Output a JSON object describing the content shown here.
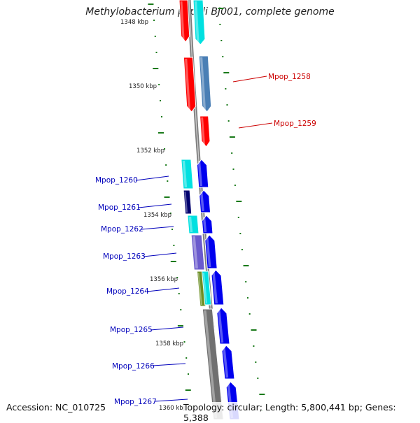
{
  "title": "Methylobacterium populi BJ001, complete genome",
  "accession": "Accession: NC_010725",
  "topology": "Topology: circular; Length: 5,800,441 bp; Genes: 5,388",
  "ticks": [
    "1348 kbp",
    "1350 kbp",
    "1352 kbp",
    "1354 kbp",
    "1356 kbp",
    "1358 kbp",
    "1360 kbp"
  ],
  "genes_right": [
    "Mpop_1258",
    "Mpop_1259"
  ],
  "genes_left": [
    "Mpop_1260",
    "Mpop_1261",
    "Mpop_1262",
    "Mpop_1263",
    "Mpop_1264",
    "Mpop_1265",
    "Mpop_1266",
    "Mpop_1267"
  ],
  "colors": {
    "backbone": "#8c8c8c",
    "red": "#ff0000",
    "cyan": "#00e0e0",
    "steel": "#4a7fb5",
    "blue": "#0000ee",
    "navy": "#00006e",
    "slate": "#6a5acd",
    "olive": "#6b8e23",
    "gray": "#707070",
    "tick": "#1a7a1a",
    "label_red": "#cc0000",
    "label_blue": "#0000bb"
  }
}
